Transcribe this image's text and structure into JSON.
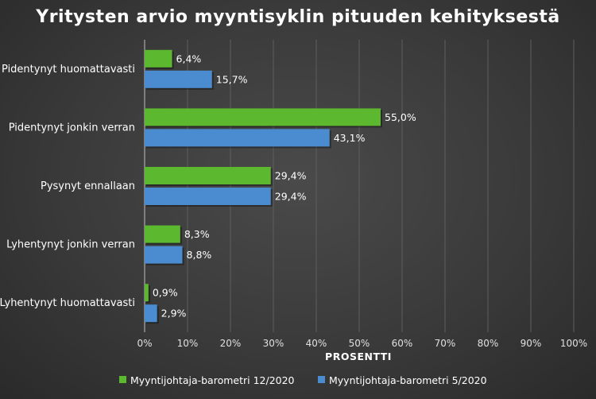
{
  "chart_data": {
    "type": "bar",
    "orientation": "horizontal",
    "title": "Yritysten arvio myyntisyklin pituuden kehityksestä",
    "xlabel": "PROSENTTI",
    "ylabel": "",
    "xlim": [
      0,
      100
    ],
    "x_ticks": [
      "0%",
      "10%",
      "20%",
      "30%",
      "40%",
      "50%",
      "60%",
      "70%",
      "80%",
      "90%",
      "100%"
    ],
    "grid": true,
    "legend_position": "bottom",
    "categories": [
      "Pidentynyt huomattavasti",
      "Pidentynyt jonkin verran",
      "Pysynyt ennallaan",
      "Lyhentynyt jonkin verran",
      "Lyhentynyt huomattavasti"
    ],
    "series": [
      {
        "name": "Myyntijohtaja-barometri 12/2020",
        "color": "#5cb82e",
        "values": [
          6.4,
          55.0,
          29.4,
          8.3,
          0.9
        ],
        "labels": [
          "6,4%",
          "55,0%",
          "29,4%",
          "8,3%",
          "0,9%"
        ]
      },
      {
        "name": "Myyntijohtaja-barometri 5/2020",
        "color": "#4a8ccf",
        "values": [
          15.7,
          43.1,
          29.4,
          8.8,
          2.9
        ],
        "labels": [
          "15,7%",
          "43,1%",
          "29,4%",
          "8,8%",
          "2,9%"
        ]
      }
    ]
  }
}
